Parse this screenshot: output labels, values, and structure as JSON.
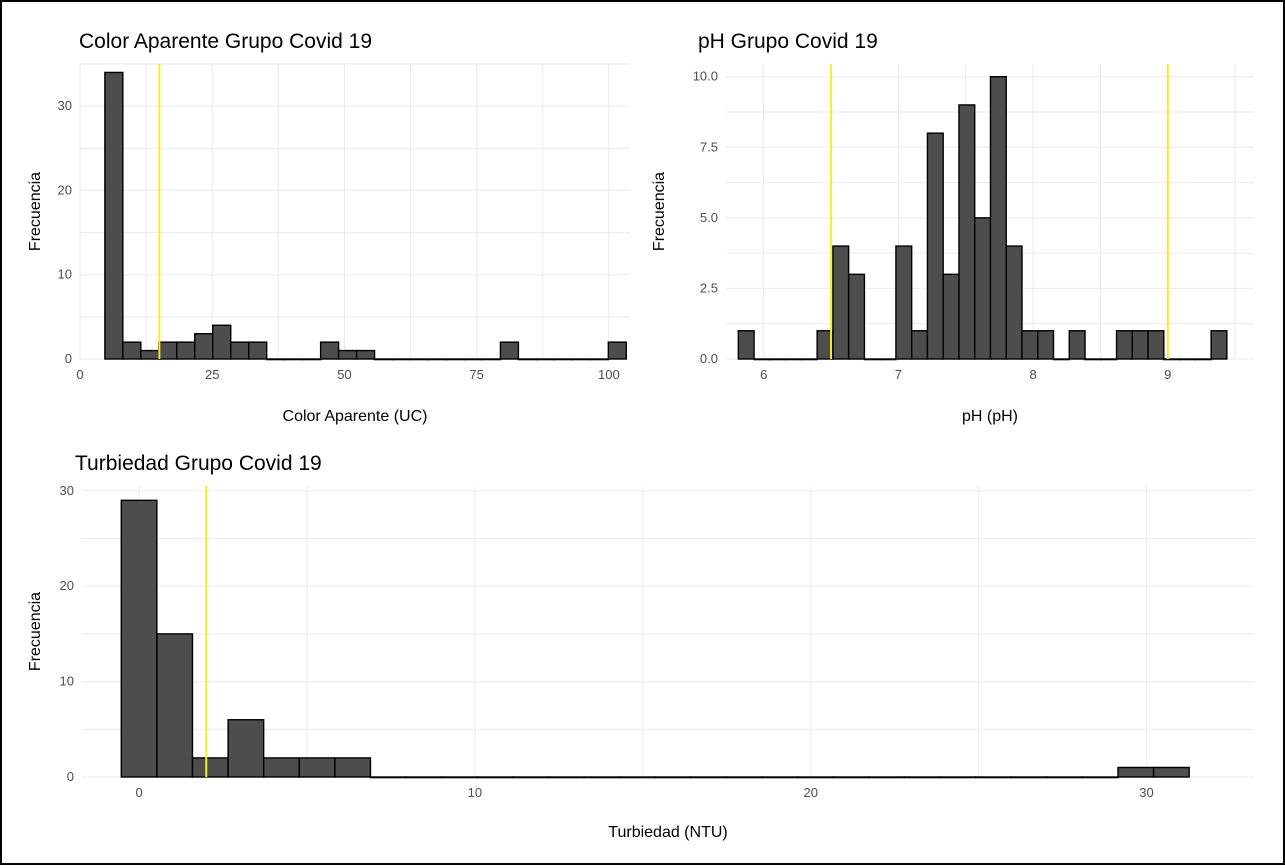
{
  "colors": {
    "bar_fill": "#4d4d4d",
    "bar_stroke": "#000000",
    "reference_line": "#f5ee2a",
    "grid": "#ebebeb",
    "text": "#000000",
    "tick_text": "#4d4d4d"
  },
  "chart_data": [
    {
      "id": "color",
      "type": "bar",
      "title": "Color Aparente Grupo Covid 19",
      "xlabel": "Color Aparente (UC)",
      "ylabel": "Frecuencia",
      "xlim": [
        0,
        104
      ],
      "ylim": [
        0,
        35
      ],
      "xticks": [
        0,
        25,
        50,
        75,
        100
      ],
      "yticks": [
        0,
        10,
        20,
        30
      ],
      "bin_width": 3.4,
      "grid": true,
      "reference_lines": [
        15
      ],
      "bins": [
        {
          "x": 6.4,
          "count": 34
        },
        {
          "x": 9.8,
          "count": 2
        },
        {
          "x": 13.2,
          "count": 1
        },
        {
          "x": 16.6,
          "count": 2
        },
        {
          "x": 20.0,
          "count": 2
        },
        {
          "x": 23.4,
          "count": 3
        },
        {
          "x": 26.8,
          "count": 4
        },
        {
          "x": 30.2,
          "count": 2
        },
        {
          "x": 33.6,
          "count": 2
        },
        {
          "x": 37.0,
          "count": 0
        },
        {
          "x": 40.4,
          "count": 0
        },
        {
          "x": 43.8,
          "count": 0
        },
        {
          "x": 47.2,
          "count": 2
        },
        {
          "x": 50.6,
          "count": 1
        },
        {
          "x": 54.0,
          "count": 1
        },
        {
          "x": 57.4,
          "count": 0
        },
        {
          "x": 60.8,
          "count": 0
        },
        {
          "x": 64.2,
          "count": 0
        },
        {
          "x": 67.6,
          "count": 0
        },
        {
          "x": 71.0,
          "count": 0
        },
        {
          "x": 74.4,
          "count": 0
        },
        {
          "x": 77.8,
          "count": 0
        },
        {
          "x": 81.2,
          "count": 2
        },
        {
          "x": 84.6,
          "count": 0
        },
        {
          "x": 88.0,
          "count": 0
        },
        {
          "x": 91.4,
          "count": 0
        },
        {
          "x": 94.8,
          "count": 0
        },
        {
          "x": 98.2,
          "count": 0
        },
        {
          "x": 101.6,
          "count": 2
        }
      ]
    },
    {
      "id": "ph",
      "type": "bar",
      "title": "pH Grupo Covid 19",
      "xlabel": "pH (pH)",
      "ylabel": "Frecuencia",
      "xlim": [
        5.72,
        9.64
      ],
      "ylim": [
        0,
        10.45
      ],
      "xticks": [
        6,
        7,
        8,
        9
      ],
      "yticks": [
        0,
        2.5,
        5,
        7.5,
        10
      ],
      "ytick_labels": [
        "0.0",
        "2.5",
        "5.0",
        "7.5",
        "10.0"
      ],
      "bin_width": 0.117,
      "grid": true,
      "reference_lines": [
        6.5,
        9
      ],
      "bins": [
        {
          "x": 5.87,
          "count": 1
        },
        {
          "x": 5.987,
          "count": 0
        },
        {
          "x": 6.104,
          "count": 0
        },
        {
          "x": 6.221,
          "count": 0
        },
        {
          "x": 6.338,
          "count": 0
        },
        {
          "x": 6.455,
          "count": 1
        },
        {
          "x": 6.572,
          "count": 4
        },
        {
          "x": 6.689,
          "count": 3
        },
        {
          "x": 6.806,
          "count": 0
        },
        {
          "x": 6.923,
          "count": 0
        },
        {
          "x": 7.04,
          "count": 4
        },
        {
          "x": 7.157,
          "count": 1
        },
        {
          "x": 7.274,
          "count": 8
        },
        {
          "x": 7.391,
          "count": 3
        },
        {
          "x": 7.508,
          "count": 9
        },
        {
          "x": 7.625,
          "count": 5
        },
        {
          "x": 7.742,
          "count": 10
        },
        {
          "x": 7.859,
          "count": 4
        },
        {
          "x": 7.976,
          "count": 1
        },
        {
          "x": 8.093,
          "count": 1
        },
        {
          "x": 8.21,
          "count": 0
        },
        {
          "x": 8.327,
          "count": 1
        },
        {
          "x": 8.444,
          "count": 0
        },
        {
          "x": 8.561,
          "count": 0
        },
        {
          "x": 8.678,
          "count": 1
        },
        {
          "x": 8.795,
          "count": 1
        },
        {
          "x": 8.912,
          "count": 1
        },
        {
          "x": 9.029,
          "count": 0
        },
        {
          "x": 9.146,
          "count": 0
        },
        {
          "x": 9.263,
          "count": 0
        },
        {
          "x": 9.38,
          "count": 1
        }
      ]
    },
    {
      "id": "turbiedad",
      "type": "bar",
      "title": "Turbiedad Grupo Covid 19",
      "xlabel": "Turbiedad (NTU)",
      "ylabel": "Frecuencia",
      "xlim": [
        -1.7,
        33.2
      ],
      "ylim": [
        0,
        30.5
      ],
      "xticks": [
        0,
        10,
        20,
        30
      ],
      "yticks": [
        0,
        10,
        20,
        30
      ],
      "bin_width": 1.06,
      "grid": true,
      "reference_lines": [
        2
      ],
      "bins": [
        {
          "x": 0,
          "count": 29
        },
        {
          "x": 1.06,
          "count": 15
        },
        {
          "x": 2.12,
          "count": 2
        },
        {
          "x": 3.18,
          "count": 6
        },
        {
          "x": 4.24,
          "count": 2
        },
        {
          "x": 5.3,
          "count": 2
        },
        {
          "x": 6.36,
          "count": 2
        },
        {
          "x": 7.42,
          "count": 0
        },
        {
          "x": 8.48,
          "count": 0
        },
        {
          "x": 9.54,
          "count": 0
        },
        {
          "x": 10.6,
          "count": 0
        },
        {
          "x": 11.66,
          "count": 0
        },
        {
          "x": 12.72,
          "count": 0
        },
        {
          "x": 13.78,
          "count": 0
        },
        {
          "x": 14.84,
          "count": 0
        },
        {
          "x": 15.9,
          "count": 0
        },
        {
          "x": 16.96,
          "count": 0
        },
        {
          "x": 18.02,
          "count": 0
        },
        {
          "x": 19.08,
          "count": 0
        },
        {
          "x": 20.14,
          "count": 0
        },
        {
          "x": 21.2,
          "count": 0
        },
        {
          "x": 22.26,
          "count": 0
        },
        {
          "x": 23.32,
          "count": 0
        },
        {
          "x": 24.38,
          "count": 0
        },
        {
          "x": 25.44,
          "count": 0
        },
        {
          "x": 26.5,
          "count": 0
        },
        {
          "x": 27.56,
          "count": 0
        },
        {
          "x": 28.62,
          "count": 0
        },
        {
          "x": 29.68,
          "count": 1
        },
        {
          "x": 30.74,
          "count": 1
        }
      ]
    }
  ]
}
